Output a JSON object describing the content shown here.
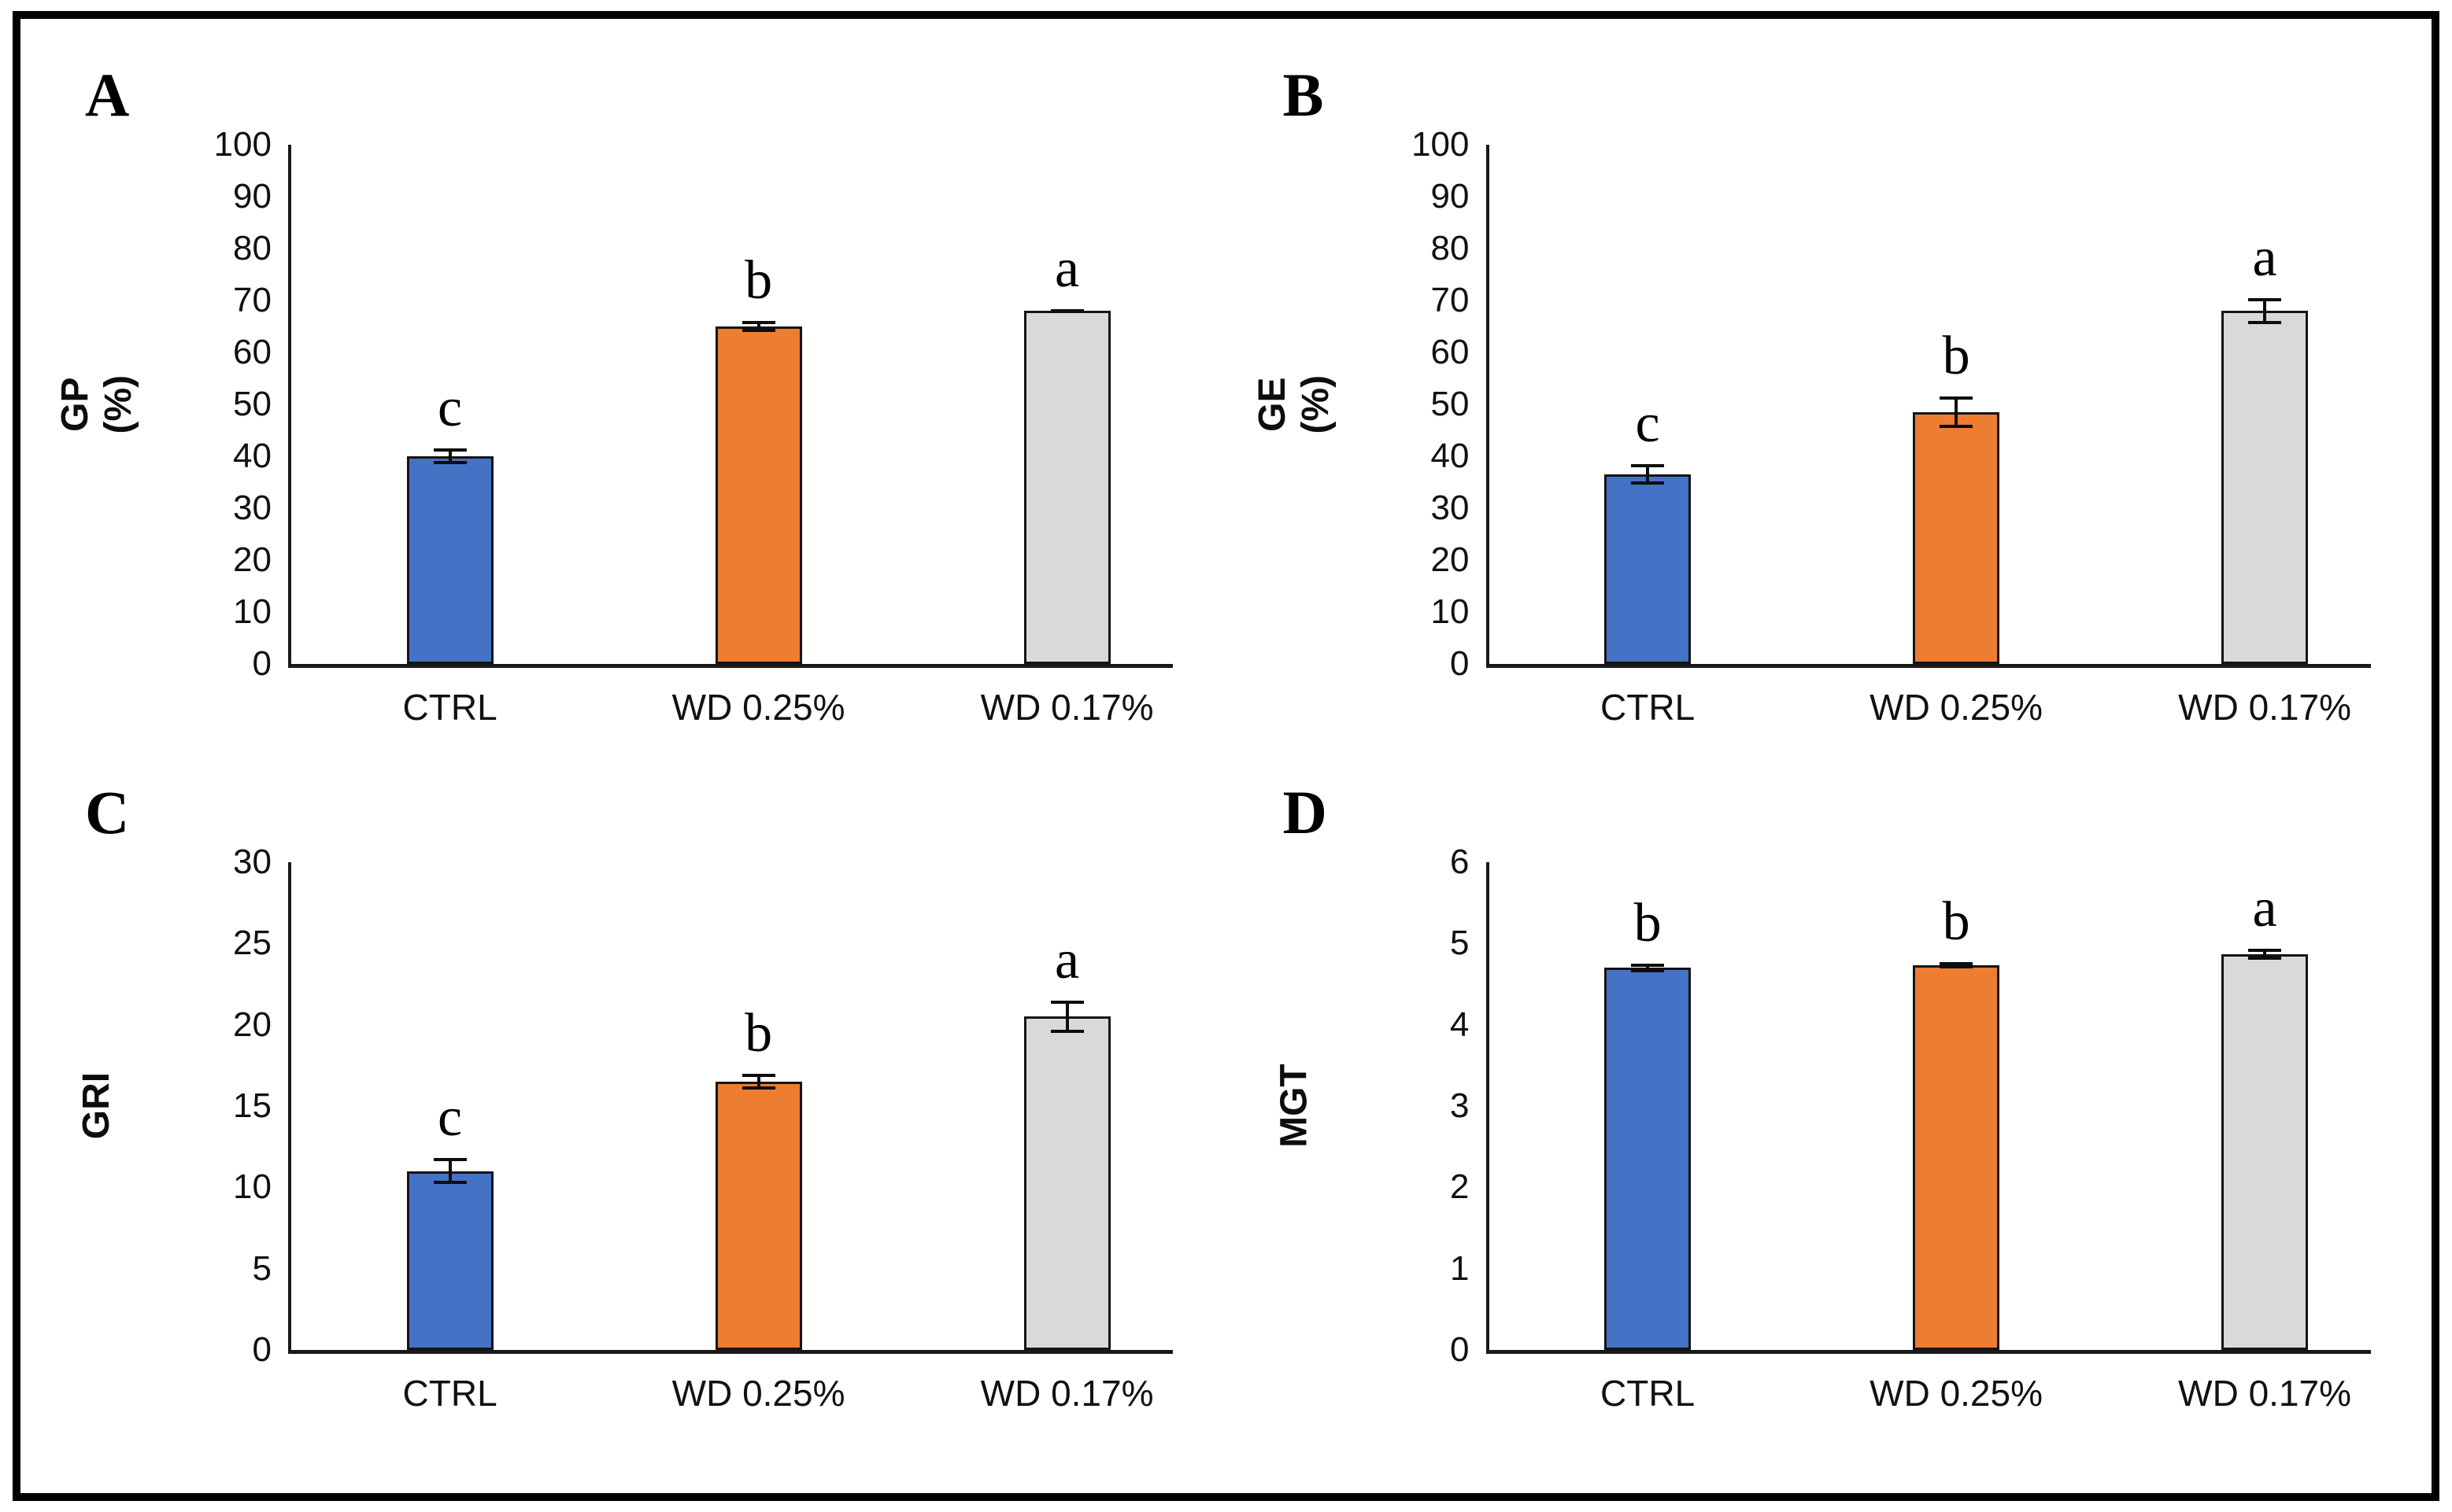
{
  "figure": {
    "background": "#ffffff",
    "border_color": "#000000"
  },
  "bar_colors": [
    "#4472C4",
    "#ED7D31",
    "#D9D9D9"
  ],
  "bar_outline_color": "#141414",
  "error_bar_color": "#0d0d0d",
  "chart_data": [
    {
      "type": "bar",
      "panel": "A",
      "ylabel": "GP (%)",
      "ylabel_lines": "GP\n(%)",
      "categories": [
        "CTRL",
        "WD 0.25%",
        "WD 0.17%"
      ],
      "values": [
        40,
        65,
        68
      ],
      "errors": [
        1.5,
        1,
        0.4
      ],
      "sig_letters": [
        "c",
        "b",
        "a"
      ],
      "ylim": [
        0,
        100
      ],
      "yticks": [
        0,
        10,
        20,
        30,
        40,
        50,
        60,
        70,
        80,
        90,
        100
      ],
      "grid": "off",
      "legend": "none"
    },
    {
      "type": "bar",
      "panel": "B",
      "ylabel": "GE (%)",
      "ylabel_lines": "GE\n(%)",
      "categories": [
        "CTRL",
        "WD 0.25%",
        "WD 0.17%"
      ],
      "values": [
        36.5,
        48.5,
        68
      ],
      "errors": [
        2,
        3,
        2.5
      ],
      "sig_letters": [
        "c",
        "b",
        "a"
      ],
      "ylim": [
        0,
        100
      ],
      "yticks": [
        0,
        10,
        20,
        30,
        40,
        50,
        60,
        70,
        80,
        90,
        100
      ],
      "grid": "off",
      "legend": "none"
    },
    {
      "type": "bar",
      "panel": "C",
      "ylabel": "GRI",
      "ylabel_lines": "GRI",
      "categories": [
        "CTRL",
        "WD 0.25%",
        "WD 0.17%"
      ],
      "values": [
        11,
        16.5,
        20.5
      ],
      "errors": [
        0.8,
        0.5,
        1
      ],
      "sig_letters": [
        "c",
        "b",
        "a"
      ],
      "ylim": [
        0,
        30
      ],
      "yticks": [
        0,
        5,
        10,
        15,
        20,
        25,
        30
      ],
      "grid": "off",
      "legend": "none"
    },
    {
      "type": "bar",
      "panel": "D",
      "ylabel": "MGT",
      "ylabel_lines": "MGT",
      "categories": [
        "CTRL",
        "WD 0.25%",
        "WD 0.17%"
      ],
      "values": [
        4.7,
        4.73,
        4.87
      ],
      "errors": [
        0.05,
        0.04,
        0.07
      ],
      "sig_letters": [
        "b",
        "b",
        "a"
      ],
      "ylim": [
        0,
        6
      ],
      "yticks": [
        0,
        1,
        2,
        3,
        4,
        5,
        6
      ],
      "grid": "off",
      "legend": "none"
    }
  ]
}
